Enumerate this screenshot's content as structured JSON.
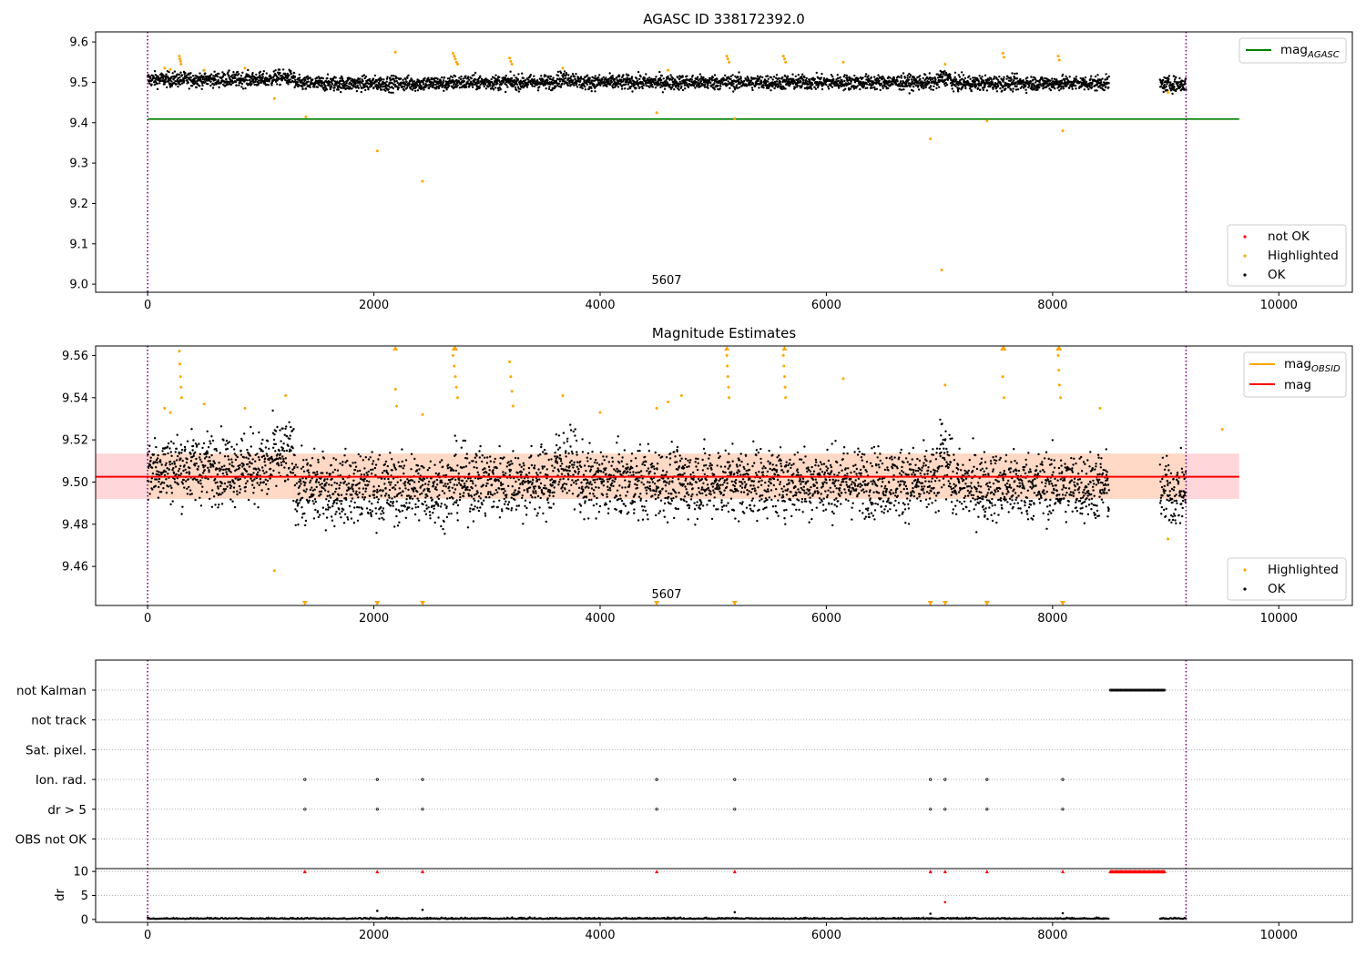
{
  "chart_data": [
    {
      "type": "scatter",
      "title": "AGASC ID 338172392.0",
      "annotation": "5607",
      "xlim": [
        -460,
        10650
      ],
      "ylim": [
        8.98,
        9.625
      ],
      "xticks": [
        "0",
        "2000",
        "4000",
        "6000",
        "8000",
        "10000"
      ],
      "yticks": [
        "9.0",
        "9.1",
        "9.2",
        "9.3",
        "9.4",
        "9.5",
        "9.6"
      ],
      "vlines": [
        0,
        9180
      ],
      "vline_color": "#800080",
      "legend_top": [
        {
          "label": "mag",
          "sub": "AGASC",
          "color": "#008000"
        }
      ],
      "legend_bottom": [
        {
          "label": "not OK",
          "color": "#ff0000"
        },
        {
          "label": "Highlighted",
          "color": "#ffa500"
        },
        {
          "label": "OK",
          "color": "#000000"
        }
      ],
      "mag_agasc": {
        "value": 9.409,
        "x_range": [
          0,
          9650
        ]
      },
      "ok_segments": [
        {
          "x": [
            0,
            1100
          ],
          "mean": 9.507,
          "spread": 0.009
        },
        {
          "x": [
            1100,
            1300
          ],
          "mean": 9.512,
          "spread": 0.009
        },
        {
          "x": [
            1300,
            2700
          ],
          "mean": 9.497,
          "spread": 0.009
        },
        {
          "x": [
            2700,
            3600
          ],
          "mean": 9.5,
          "spread": 0.009
        },
        {
          "x": [
            3600,
            3800
          ],
          "mean": 9.508,
          "spread": 0.009
        },
        {
          "x": [
            3800,
            7000
          ],
          "mean": 9.5,
          "spread": 0.009
        },
        {
          "x": [
            7000,
            7100
          ],
          "mean": 9.512,
          "spread": 0.009
        },
        {
          "x": [
            7100,
            8500
          ],
          "mean": 9.498,
          "spread": 0.009
        },
        {
          "x": [
            8950,
            9180
          ],
          "mean": 9.495,
          "spread": 0.009
        }
      ],
      "highlighted": [
        [
          280,
          9.565
        ],
        [
          285,
          9.558
        ],
        [
          290,
          9.552
        ],
        [
          295,
          9.545
        ],
        [
          150,
          9.535
        ],
        [
          200,
          9.532
        ],
        [
          500,
          9.53
        ],
        [
          860,
          9.535
        ],
        [
          1120,
          9.46
        ],
        [
          1400,
          9.415
        ],
        [
          2030,
          9.33
        ],
        [
          2190,
          9.575
        ],
        [
          2430,
          9.255
        ],
        [
          2700,
          9.572
        ],
        [
          2710,
          9.565
        ],
        [
          2720,
          9.558
        ],
        [
          2730,
          9.55
        ],
        [
          2740,
          9.545
        ],
        [
          3200,
          9.56
        ],
        [
          3210,
          9.552
        ],
        [
          3220,
          9.545
        ],
        [
          3670,
          9.535
        ],
        [
          4500,
          9.425
        ],
        [
          4600,
          9.53
        ],
        [
          5120,
          9.565
        ],
        [
          5130,
          9.558
        ],
        [
          5140,
          9.55
        ],
        [
          5190,
          9.41
        ],
        [
          5620,
          9.565
        ],
        [
          5630,
          9.558
        ],
        [
          5640,
          9.55
        ],
        [
          6150,
          9.55
        ],
        [
          6920,
          9.36
        ],
        [
          7020,
          9.035
        ],
        [
          7050,
          9.545
        ],
        [
          7420,
          9.405
        ],
        [
          7560,
          9.572
        ],
        [
          7570,
          9.562
        ],
        [
          8050,
          9.565
        ],
        [
          8060,
          9.555
        ],
        [
          8090,
          9.38
        ],
        [
          9020,
          9.475
        ]
      ]
    },
    {
      "type": "scatter",
      "title": "Magnitude Estimates",
      "annotation": "5607",
      "xlim": [
        -460,
        10650
      ],
      "ylim": [
        9.4415,
        9.5645
      ],
      "xticks": [
        "0",
        "2000",
        "4000",
        "6000",
        "8000",
        "10000"
      ],
      "yticks": [
        "9.46",
        "9.48",
        "9.50",
        "9.52",
        "9.54",
        "9.56"
      ],
      "vlines": [
        0,
        9180
      ],
      "vline_color": "#800080",
      "legend_top": [
        {
          "label": "mag",
          "sub": "OBSID",
          "color": "#ffa500"
        },
        {
          "label": "mag",
          "sub": "",
          "color": "#ff0000"
        }
      ],
      "legend_bottom": [
        {
          "label": "Highlighted",
          "color": "#ffa500"
        },
        {
          "label": "OK",
          "color": "#000000"
        }
      ],
      "mag_line": {
        "value": 9.5025,
        "x_range": [
          -460,
          9650
        ],
        "color": "#ff0000"
      },
      "mag_band": {
        "low": 9.492,
        "high": 9.5135,
        "x_range": [
          -460,
          9650
        ],
        "color": "#ffb0b8"
      },
      "obsid_band": {
        "low": 9.492,
        "high": 9.5135,
        "x_range": [
          0,
          9180
        ],
        "color": "#ffd9bd"
      },
      "ok_segments": [
        {
          "x": [
            0,
            1100
          ],
          "mean": 9.507,
          "spread": 0.008
        },
        {
          "x": [
            1100,
            1300
          ],
          "mean": 9.512,
          "spread": 0.008
        },
        {
          "x": [
            1300,
            2700
          ],
          "mean": 9.497,
          "spread": 0.008
        },
        {
          "x": [
            2700,
            3600
          ],
          "mean": 9.5,
          "spread": 0.008
        },
        {
          "x": [
            3600,
            3800
          ],
          "mean": 9.508,
          "spread": 0.008
        },
        {
          "x": [
            3800,
            7000
          ],
          "mean": 9.5,
          "spread": 0.008
        },
        {
          "x": [
            7000,
            7100
          ],
          "mean": 9.512,
          "spread": 0.008
        },
        {
          "x": [
            7100,
            8500
          ],
          "mean": 9.498,
          "spread": 0.008
        },
        {
          "x": [
            8950,
            9180
          ],
          "mean": 9.495,
          "spread": 0.008
        }
      ],
      "highlighted": [
        [
          280,
          9.562
        ],
        [
          285,
          9.556
        ],
        [
          290,
          9.55
        ],
        [
          295,
          9.545
        ],
        [
          300,
          9.54
        ],
        [
          150,
          9.535
        ],
        [
          200,
          9.533
        ],
        [
          500,
          9.537
        ],
        [
          860,
          9.535
        ],
        [
          1120,
          9.458
        ],
        [
          1220,
          9.541
        ],
        [
          2190,
          9.544
        ],
        [
          2200,
          9.536
        ],
        [
          2430,
          9.532
        ],
        [
          2700,
          9.56
        ],
        [
          2710,
          9.555
        ],
        [
          2720,
          9.55
        ],
        [
          2730,
          9.545
        ],
        [
          2740,
          9.54
        ],
        [
          3200,
          9.557
        ],
        [
          3210,
          9.55
        ],
        [
          3220,
          9.543
        ],
        [
          3230,
          9.536
        ],
        [
          3670,
          9.541
        ],
        [
          4000,
          9.533
        ],
        [
          4500,
          9.535
        ],
        [
          4600,
          9.538
        ],
        [
          4720,
          9.541
        ],
        [
          5120,
          9.56
        ],
        [
          5125,
          9.555
        ],
        [
          5130,
          9.55
        ],
        [
          5135,
          9.545
        ],
        [
          5140,
          9.54
        ],
        [
          5620,
          9.56
        ],
        [
          5625,
          9.555
        ],
        [
          5630,
          9.55
        ],
        [
          5635,
          9.545
        ],
        [
          5640,
          9.54
        ],
        [
          6150,
          9.549
        ],
        [
          7050,
          9.546
        ],
        [
          7560,
          9.55
        ],
        [
          7570,
          9.54
        ],
        [
          8050,
          9.56
        ],
        [
          8055,
          9.553
        ],
        [
          8060,
          9.546
        ],
        [
          8070,
          9.54
        ],
        [
          8420,
          9.535
        ],
        [
          9020,
          9.473
        ],
        [
          9500,
          9.525
        ]
      ],
      "clipped_low": [
        1390,
        2030,
        2430,
        4500,
        5190,
        6920,
        7050,
        7420,
        8090
      ],
      "clipped_high": [
        2190,
        2710,
        2720,
        5120,
        5630,
        7560,
        7570,
        8050,
        8060
      ]
    },
    {
      "type": "scatter",
      "title": "",
      "xlim": [
        -460,
        10650
      ],
      "xticks": [
        "0",
        "2000",
        "4000",
        "6000",
        "8000",
        "10000"
      ],
      "categories": [
        "not Kalman",
        "not track",
        "Sat. pixel.",
        "Ion. rad.",
        "dr > 5",
        "OBS not OK"
      ],
      "vlines": [
        0,
        9180
      ],
      "vline_color": "#800080",
      "not_kalman_range": [
        8510,
        8990
      ],
      "flag_points": {
        "Ion. rad.": [
          1390,
          2030,
          2430,
          4500,
          5190,
          6920,
          7050,
          7420,
          8090
        ],
        "dr > 5": [
          1390,
          2030,
          2430,
          4500,
          5190,
          6920,
          7050,
          7420,
          8090
        ]
      },
      "dr": {
        "ylabel": "dr",
        "yticks": [
          "0",
          "5",
          "10"
        ],
        "ylim": [
          -0.6,
          10.6
        ],
        "clip_value": 10,
        "clipped_x": [
          1390,
          2030,
          2430,
          4500,
          5190,
          6920,
          7050,
          7420,
          8090
        ],
        "clipped_range": [
          8510,
          8990
        ],
        "clipped_color": "#ff0000",
        "ok_segments": [
          [
            0,
            8500
          ],
          [
            8950,
            9180
          ]
        ],
        "outliers": [
          [
            2030,
            1.8
          ],
          [
            2430,
            2.0
          ],
          [
            5190,
            1.5
          ],
          [
            6920,
            1.2
          ],
          [
            7050,
            3.6
          ],
          [
            8090,
            1.3
          ]
        ]
      }
    }
  ]
}
